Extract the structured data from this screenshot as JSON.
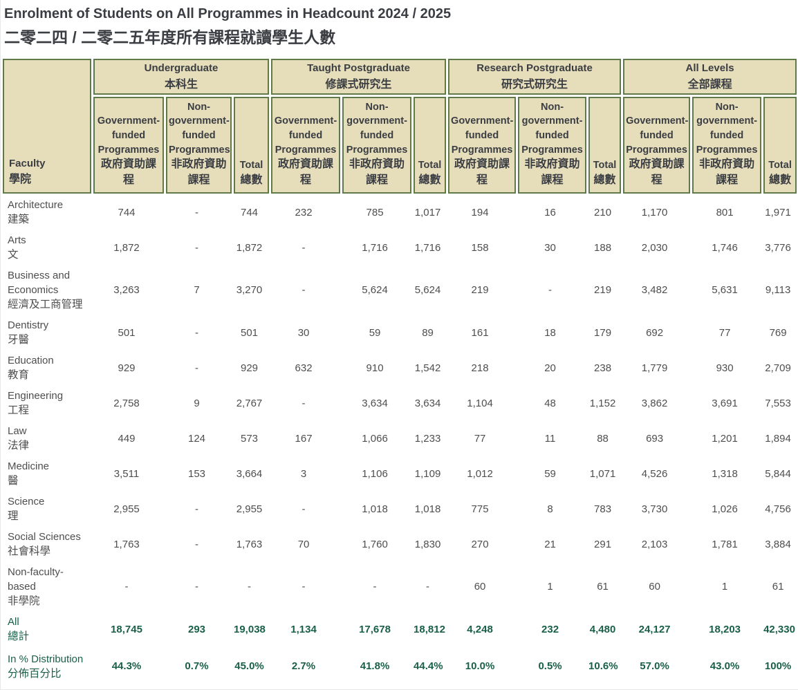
{
  "title": "Enrolment of Students on All Programmes in Headcount 2024 / 2025",
  "subtitle_zh": "二零二四 / 二零二五年度所有課程就讀學生人數",
  "colors": {
    "header_bg": "#e6ddbb",
    "header_border": "#5f7a48",
    "title_text": "#3a3d42",
    "body_text": "#4e4e4e",
    "summary_green": "#1a6048"
  },
  "table": {
    "faculty_header": {
      "en": "Faculty",
      "zh": "學院"
    },
    "groups": [
      {
        "en": "Undergraduate",
        "zh": "本科生"
      },
      {
        "en": "Taught Postgraduate",
        "zh": "修課式研究生"
      },
      {
        "en": "Research Postgraduate",
        "zh": "研究式研究生"
      },
      {
        "en": "All Levels",
        "zh": "全部課程"
      }
    ],
    "subcolumns": [
      {
        "en": "Government-funded Programmes",
        "zh": "政府資助課程"
      },
      {
        "en": "Non-government-funded Programmes",
        "zh": "非政府資助課程"
      },
      {
        "en": "Total",
        "zh": "總數"
      }
    ],
    "rows": [
      {
        "en": "Architecture",
        "zh": "建築",
        "values": [
          "744",
          "-",
          "744",
          "232",
          "785",
          "1,017",
          "194",
          "16",
          "210",
          "1,170",
          "801",
          "1,971"
        ]
      },
      {
        "en": "Arts",
        "zh": "文",
        "values": [
          "1,872",
          "-",
          "1,872",
          "-",
          "1,716",
          "1,716",
          "158",
          "30",
          "188",
          "2,030",
          "1,746",
          "3,776"
        ]
      },
      {
        "en": "Business and Economics",
        "zh": "經濟及工商管理",
        "values": [
          "3,263",
          "7",
          "3,270",
          "-",
          "5,624",
          "5,624",
          "219",
          "-",
          "219",
          "3,482",
          "5,631",
          "9,113"
        ]
      },
      {
        "en": "Dentistry",
        "zh": "牙醫",
        "values": [
          "501",
          "-",
          "501",
          "30",
          "59",
          "89",
          "161",
          "18",
          "179",
          "692",
          "77",
          "769"
        ]
      },
      {
        "en": "Education",
        "zh": "教育",
        "values": [
          "929",
          "-",
          "929",
          "632",
          "910",
          "1,542",
          "218",
          "20",
          "238",
          "1,779",
          "930",
          "2,709"
        ]
      },
      {
        "en": "Engineering",
        "zh": "工程",
        "values": [
          "2,758",
          "9",
          "2,767",
          "-",
          "3,634",
          "3,634",
          "1,104",
          "48",
          "1,152",
          "3,862",
          "3,691",
          "7,553"
        ]
      },
      {
        "en": "Law",
        "zh": "法律",
        "values": [
          "449",
          "124",
          "573",
          "167",
          "1,066",
          "1,233",
          "77",
          "11",
          "88",
          "693",
          "1,201",
          "1,894"
        ]
      },
      {
        "en": "Medicine",
        "zh": "醫",
        "values": [
          "3,511",
          "153",
          "3,664",
          "3",
          "1,106",
          "1,109",
          "1,012",
          "59",
          "1,071",
          "4,526",
          "1,318",
          "5,844"
        ]
      },
      {
        "en": "Science",
        "zh": "理",
        "values": [
          "2,955",
          "-",
          "2,955",
          "-",
          "1,018",
          "1,018",
          "775",
          "8",
          "783",
          "3,730",
          "1,026",
          "4,756"
        ]
      },
      {
        "en": "Social Sciences",
        "zh": "社會科學",
        "values": [
          "1,763",
          "-",
          "1,763",
          "70",
          "1,760",
          "1,830",
          "270",
          "21",
          "291",
          "2,103",
          "1,781",
          "3,884"
        ]
      },
      {
        "en": "Non-faculty-based",
        "zh": "非學院",
        "values": [
          "-",
          "-",
          "-",
          "-",
          "-",
          "-",
          "60",
          "1",
          "61",
          "60",
          "1",
          "61"
        ]
      }
    ],
    "summary_rows": [
      {
        "en": "All",
        "zh": "總計",
        "values": [
          "18,745",
          "293",
          "19,038",
          "1,134",
          "17,678",
          "18,812",
          "4,248",
          "232",
          "4,480",
          "24,127",
          "18,203",
          "42,330"
        ]
      },
      {
        "en": "In % Distribution",
        "zh": "分佈百分比",
        "values": [
          "44.3%",
          "0.7%",
          "45.0%",
          "2.7%",
          "41.8%",
          "44.4%",
          "10.0%",
          "0.5%",
          "10.6%",
          "57.0%",
          "43.0%",
          "100%"
        ]
      }
    ]
  }
}
